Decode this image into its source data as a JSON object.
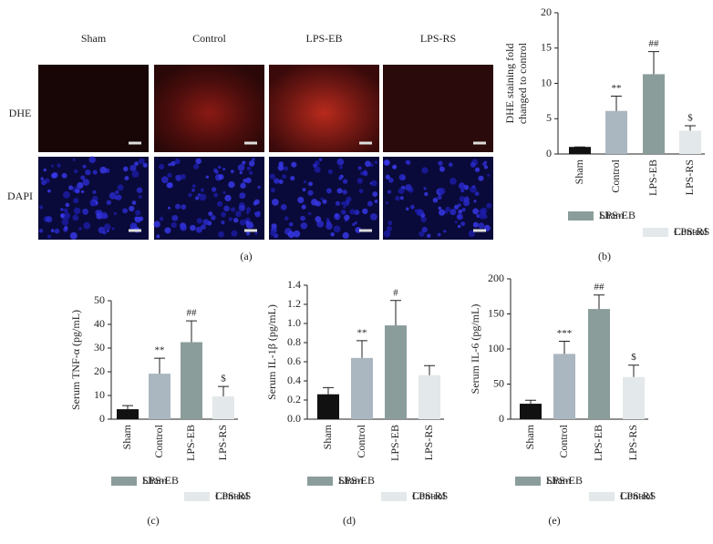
{
  "image_panel": {
    "columns": [
      "Sham",
      "Control",
      "LPS-EB",
      "LPS-RS"
    ],
    "rows": [
      "DHE",
      "DAPI"
    ],
    "label": "(a)"
  },
  "chart_data": [
    {
      "type": "bar",
      "label": "(b)",
      "ylabel": [
        "DHE staining fold",
        "changed to control"
      ],
      "categories": [
        "Sham",
        "Control",
        "LPS-EB",
        "LPS-RS"
      ],
      "values": [
        1,
        6.1,
        11.3,
        3.3
      ],
      "errors": [
        0,
        2.1,
        3.2,
        0.7
      ],
      "annotations": [
        null,
        "**",
        "##",
        "$"
      ],
      "colors": [
        "#111111",
        "#aab6c0",
        "#8a9d9b",
        "#e3e8ea"
      ],
      "ylim": [
        0,
        20
      ],
      "yticks": [
        0,
        5,
        10,
        15,
        20
      ]
    },
    {
      "type": "bar",
      "label": "(c)",
      "ylabel": [
        "Serum TNF-α (pg/mL)"
      ],
      "categories": [
        "Sham",
        "Control",
        "LPS-EB",
        "LPS-RS"
      ],
      "values": [
        4.2,
        19.2,
        32.5,
        9.6
      ],
      "errors": [
        1.5,
        6.5,
        9,
        4.2
      ],
      "annotations": [
        null,
        "**",
        "##",
        "$"
      ],
      "colors": [
        "#111111",
        "#aab6c0",
        "#8a9d9b",
        "#e3e8ea"
      ],
      "ylim": [
        0,
        50
      ],
      "yticks": [
        0,
        10,
        20,
        30,
        40,
        50
      ]
    },
    {
      "type": "bar",
      "label": "(d)",
      "ylabel": [
        "Serum IL-1β (pg/mL)"
      ],
      "categories": [
        "Sham",
        "Control",
        "LPS-EB",
        "LPS-RS"
      ],
      "values": [
        0.26,
        0.64,
        0.98,
        0.46
      ],
      "errors": [
        0.07,
        0.18,
        0.26,
        0.1
      ],
      "annotations": [
        null,
        "**",
        "#",
        null
      ],
      "colors": [
        "#111111",
        "#aab6c0",
        "#8a9d9b",
        "#e3e8ea"
      ],
      "ylim": [
        0,
        1.4
      ],
      "yticks": [
        {
          "value": 0,
          "label": "0.0"
        },
        0.2,
        0.4,
        0.6,
        0.8,
        {
          "value": 1,
          "label": "1.0"
        },
        1.2,
        1.4
      ]
    },
    {
      "type": "bar",
      "label": "(e)",
      "ylabel": [
        "Serum IL-6 (pg/mL)"
      ],
      "categories": [
        "Sham",
        "Control",
        "LPS-EB",
        "LPS-RS"
      ],
      "values": [
        22,
        93,
        157,
        60
      ],
      "errors": [
        5,
        18,
        20,
        17
      ],
      "annotations": [
        null,
        "***",
        "##",
        "$"
      ],
      "colors": [
        "#111111",
        "#aab6c0",
        "#8a9d9b",
        "#e3e8ea"
      ],
      "ylim": [
        0,
        200
      ],
      "yticks": [
        0,
        50,
        100,
        150,
        200
      ]
    }
  ]
}
